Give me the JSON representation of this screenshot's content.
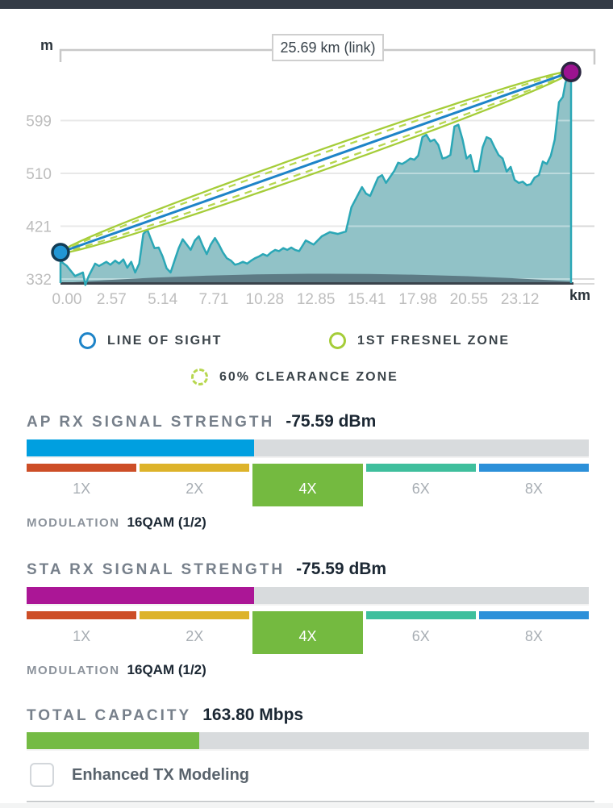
{
  "chart": {
    "link_label": "25.69 km (link)",
    "y_unit": "m",
    "x_unit": "km"
  },
  "chart_data": {
    "type": "area",
    "title": "25.69 km (link)",
    "x_unit": "km",
    "y_unit": "m",
    "y_ticks": [
      599,
      510,
      421,
      332
    ],
    "x_ticks": [
      "0.00",
      "2.57",
      "5.14",
      "7.71",
      "10.28",
      "12.85",
      "15.41",
      "17.98",
      "20.55",
      "23.12"
    ],
    "x_range": [
      0,
      25.69
    ],
    "los": {
      "start": {
        "km": 0.0,
        "m": 377
      },
      "end": {
        "km": 25.69,
        "m": 681
      }
    },
    "fresnel": {
      "max_radius_m": 18,
      "clearance_percent": 60
    },
    "colors": {
      "terrain_fill": "#8dc0c5",
      "terrain_stroke": "#2ba7b6",
      "los": "#1e84c8",
      "fresnel": "#a5cd39",
      "clearance": "#b7d74f",
      "earth": "#5d7b85",
      "baseline": "#3a434c",
      "grid": "#d9d9d9",
      "tick_text": "#bdbdbd",
      "endpoint_ap_fill": "#2196d4",
      "endpoint_ap_stroke": "#123c55",
      "endpoint_sta_fill": "#9c1390",
      "endpoint_sta_stroke": "#2b2540"
    },
    "terrain": [
      [
        0.0,
        362
      ],
      [
        0.32,
        354
      ],
      [
        0.73,
        337
      ],
      [
        1.13,
        343
      ],
      [
        1.25,
        322
      ],
      [
        1.42,
        337
      ],
      [
        1.74,
        358
      ],
      [
        1.94,
        354
      ],
      [
        2.31,
        361
      ],
      [
        2.51,
        356
      ],
      [
        2.75,
        363
      ],
      [
        2.95,
        358
      ],
      [
        3.16,
        365
      ],
      [
        3.36,
        351
      ],
      [
        3.56,
        361
      ],
      [
        3.76,
        343
      ],
      [
        3.96,
        358
      ],
      [
        4.17,
        408
      ],
      [
        4.37,
        415
      ],
      [
        4.53,
        401
      ],
      [
        4.73,
        384
      ],
      [
        4.94,
        385
      ],
      [
        5.14,
        370
      ],
      [
        5.34,
        350
      ],
      [
        5.54,
        343
      ],
      [
        5.74,
        363
      ],
      [
        5.95,
        384
      ],
      [
        6.15,
        399
      ],
      [
        6.35,
        390
      ],
      [
        6.55,
        381
      ],
      [
        6.76,
        397
      ],
      [
        6.96,
        404
      ],
      [
        7.16,
        388
      ],
      [
        7.36,
        374
      ],
      [
        7.56,
        390
      ],
      [
        7.77,
        401
      ],
      [
        7.97,
        390
      ],
      [
        8.17,
        377
      ],
      [
        8.37,
        367
      ],
      [
        8.58,
        363
      ],
      [
        8.78,
        356
      ],
      [
        8.98,
        358
      ],
      [
        9.18,
        361
      ],
      [
        9.39,
        358
      ],
      [
        9.59,
        363
      ],
      [
        9.79,
        367
      ],
      [
        9.99,
        370
      ],
      [
        10.19,
        374
      ],
      [
        10.4,
        371
      ],
      [
        10.6,
        377
      ],
      [
        10.8,
        381
      ],
      [
        11.0,
        379
      ],
      [
        11.21,
        384
      ],
      [
        11.41,
        381
      ],
      [
        11.61,
        385
      ],
      [
        11.81,
        381
      ],
      [
        12.01,
        379
      ],
      [
        12.34,
        397
      ],
      [
        12.74,
        390
      ],
      [
        13.15,
        404
      ],
      [
        13.55,
        411
      ],
      [
        13.96,
        408
      ],
      [
        14.36,
        412
      ],
      [
        14.64,
        453
      ],
      [
        15.17,
        487
      ],
      [
        15.37,
        476
      ],
      [
        15.58,
        472
      ],
      [
        15.98,
        503
      ],
      [
        16.18,
        507
      ],
      [
        16.38,
        494
      ],
      [
        16.79,
        514
      ],
      [
        16.99,
        528
      ],
      [
        17.19,
        526
      ],
      [
        17.4,
        530
      ],
      [
        17.6,
        535
      ],
      [
        17.8,
        533
      ],
      [
        18.0,
        540
      ],
      [
        18.21,
        571
      ],
      [
        18.41,
        575
      ],
      [
        18.61,
        564
      ],
      [
        18.81,
        567
      ],
      [
        19.01,
        558
      ],
      [
        19.22,
        535
      ],
      [
        19.42,
        537
      ],
      [
        19.62,
        541
      ],
      [
        19.82,
        589
      ],
      [
        20.02,
        592
      ],
      [
        20.23,
        567
      ],
      [
        20.43,
        535
      ],
      [
        20.63,
        541
      ],
      [
        20.83,
        513
      ],
      [
        21.03,
        514
      ],
      [
        21.24,
        554
      ],
      [
        21.44,
        571
      ],
      [
        21.64,
        568
      ],
      [
        21.84,
        554
      ],
      [
        22.04,
        541
      ],
      [
        22.25,
        535
      ],
      [
        22.45,
        513
      ],
      [
        22.65,
        521
      ],
      [
        22.85,
        499
      ],
      [
        23.06,
        494
      ],
      [
        23.26,
        496
      ],
      [
        23.46,
        490
      ],
      [
        23.66,
        492
      ],
      [
        23.86,
        503
      ],
      [
        24.07,
        507
      ],
      [
        24.27,
        530
      ],
      [
        24.47,
        526
      ],
      [
        24.67,
        540
      ],
      [
        24.87,
        567
      ],
      [
        25.08,
        630
      ],
      [
        25.28,
        639
      ],
      [
        25.4,
        662
      ],
      [
        25.56,
        677
      ],
      [
        25.69,
        680
      ]
    ]
  },
  "legend": {
    "items": [
      {
        "label": "LINE OF SIGHT",
        "color": "#1e84c8",
        "style": "solid"
      },
      {
        "label": "1ST FRESNEL ZONE",
        "color": "#a5cd39",
        "style": "solid"
      },
      {
        "label": "60% CLEARANCE ZONE",
        "color": "#b7d74f",
        "style": "dashed"
      }
    ]
  },
  "ap": {
    "title": "AP RX SIGNAL STRENGTH",
    "value": "-75.59 dBm",
    "fill_percent": 40.4,
    "bar_color": "#009fe0",
    "modulation_label": "MODULATION",
    "modulation_value": "16QAM (1/2)"
  },
  "sta": {
    "title": "STA RX SIGNAL STRENGTH",
    "value": "-75.59 dBm",
    "fill_percent": 40.4,
    "bar_color": "#ab1696",
    "modulation_label": "MODULATION",
    "modulation_value": "16QAM (1/2)"
  },
  "capacity": {
    "title": "TOTAL CAPACITY",
    "value": "163.80 Mbps",
    "fill_percent": 30.7,
    "bar_color": "#74bb44"
  },
  "modulation": {
    "segments": [
      {
        "label": "1X",
        "color": "#cd4e27",
        "active": false
      },
      {
        "label": "2X",
        "color": "#ddb32a",
        "active": false
      },
      {
        "label": "4X",
        "color": "#74ba40",
        "active": true
      },
      {
        "label": "6X",
        "color": "#3fbf9d",
        "active": false
      },
      {
        "label": "8X",
        "color": "#2c90d9",
        "active": false
      }
    ]
  },
  "checkbox": {
    "label": "Enhanced TX Modeling",
    "checked": false
  }
}
